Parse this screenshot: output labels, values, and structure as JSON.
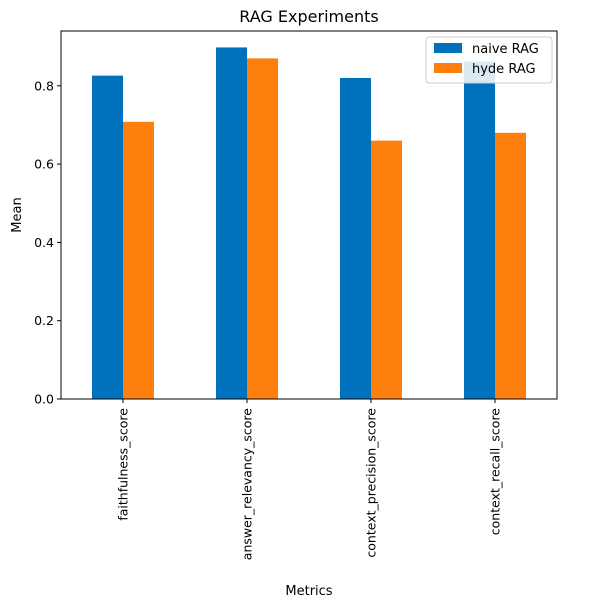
{
  "chart_data": {
    "type": "bar",
    "title": "RAG Experiments",
    "xlabel": "Metrics",
    "ylabel": "Mean",
    "categories": [
      "faithfulness_score",
      "answer_relevancy_score",
      "context_precision_score",
      "context_recall_score"
    ],
    "series": [
      {
        "name": "naive RAG",
        "color": "#0072bd",
        "values": [
          0.826,
          0.898,
          0.82,
          0.862
        ]
      },
      {
        "name": "hyde RAG",
        "color": "#ff7f0e",
        "values": [
          0.708,
          0.87,
          0.66,
          0.68
        ]
      }
    ],
    "ylim": [
      0,
      0.94
    ],
    "yticks": [
      0.0,
      0.2,
      0.4,
      0.6,
      0.8
    ],
    "ytick_labels": [
      "0.0",
      "0.2",
      "0.4",
      "0.6",
      "0.8"
    ],
    "grid": false,
    "legend_position": "top-right"
  }
}
